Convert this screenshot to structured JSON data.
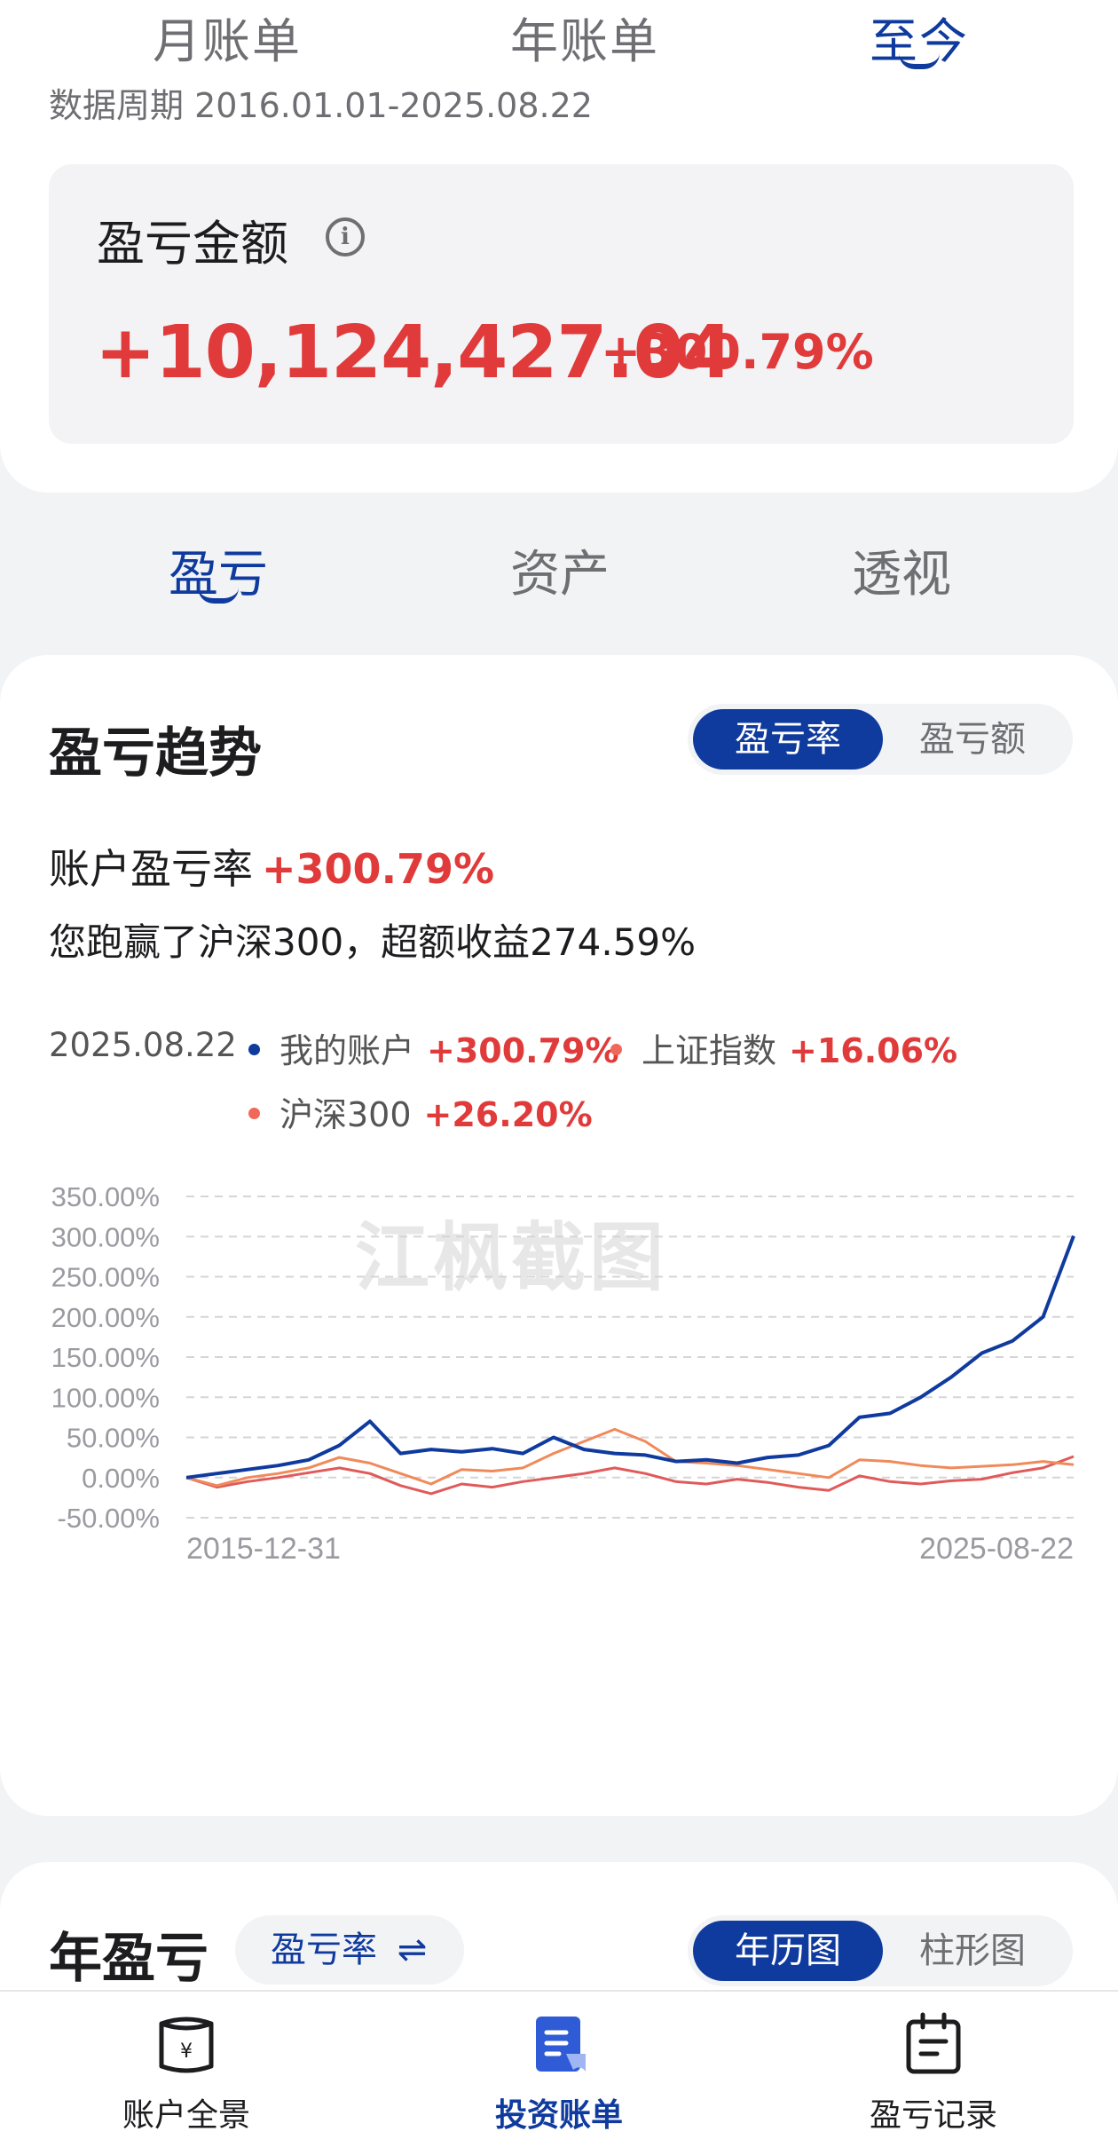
{
  "period_tabs": [
    {
      "label": "月账单"
    },
    {
      "label": "年账单"
    },
    {
      "label": "至今"
    }
  ],
  "date_range": "数据周期 2016.01.01-2025.08.22",
  "pnl": {
    "label": "盈亏金额",
    "info_icon": "info-icon",
    "amount": "+10,124,427.04",
    "percent": "+300.79%"
  },
  "main_tabs": [
    {
      "label": "盈亏"
    },
    {
      "label": "资产"
    },
    {
      "label": "透视"
    }
  ],
  "trend": {
    "title": "盈亏趋势",
    "toggle": [
      "盈亏率",
      "盈亏额"
    ],
    "rate_label": "账户盈亏率",
    "rate_value": "+300.79%",
    "beat_text": "您跑赢了沪深300，超额收益274.59%",
    "legend_date": "2025.08.22",
    "legend": [
      {
        "name": "我的账户",
        "value": "+300.79%",
        "color": "#0f3a9e"
      },
      {
        "name": "上证指数",
        "value": "+16.06%",
        "color": "#f08a5a"
      },
      {
        "name": "沪深300",
        "value": "+26.20%",
        "color": "#e05a5a"
      }
    ],
    "watermark": "江枫截图"
  },
  "chart_data": {
    "type": "line",
    "ylabel": "",
    "xlabel": "",
    "ylim": [
      -50,
      350
    ],
    "yticks": [
      "350.00%",
      "300.00%",
      "250.00%",
      "200.00%",
      "150.00%",
      "100.00%",
      "50.00%",
      "0.00%",
      "-50.00%"
    ],
    "ytick_values": [
      350,
      300,
      250,
      200,
      150,
      100,
      50,
      0,
      -50
    ],
    "xticks": [
      "2015-12-31",
      "2025-08-22"
    ],
    "x": [
      "2015-12-31",
      "2016-06",
      "2017-01",
      "2017-06",
      "2017-10",
      "2018-01",
      "2018-02",
      "2018-06",
      "2018-12",
      "2019-04",
      "2019-08",
      "2020-01",
      "2020-02",
      "2020-07",
      "2021-02",
      "2021-07",
      "2022-04",
      "2022-10",
      "2023-04",
      "2023-10",
      "2024-02",
      "2024-06",
      "2024-09",
      "2024-10",
      "2024-12",
      "2025-02",
      "2025-04",
      "2025-06",
      "2025-07",
      "2025-08-22"
    ],
    "series": [
      {
        "name": "我的账户",
        "color": "#0f3a9e",
        "values": [
          0,
          5,
          10,
          15,
          22,
          40,
          70,
          30,
          35,
          32,
          36,
          30,
          50,
          35,
          30,
          28,
          20,
          22,
          18,
          25,
          28,
          40,
          75,
          80,
          100,
          125,
          155,
          170,
          200,
          300.79
        ]
      },
      {
        "name": "上证指数",
        "color": "#f08a5a",
        "values": [
          0,
          -10,
          0,
          5,
          12,
          25,
          18,
          5,
          -8,
          10,
          8,
          12,
          30,
          45,
          60,
          45,
          20,
          18,
          15,
          10,
          5,
          0,
          22,
          20,
          15,
          12,
          14,
          16,
          20,
          16.06
        ]
      },
      {
        "name": "沪深300",
        "color": "#e05a5a",
        "values": [
          0,
          -12,
          -5,
          0,
          6,
          12,
          5,
          -10,
          -20,
          -8,
          -12,
          -5,
          0,
          5,
          12,
          5,
          -5,
          -8,
          -2,
          -6,
          -12,
          -16,
          2,
          -5,
          -8,
          -4,
          -2,
          6,
          12,
          26.2
        ]
      }
    ]
  },
  "year_section": {
    "title": "年盈亏",
    "chip_label": "盈亏率",
    "chip_icon": "swap-icon",
    "toggle": [
      "年历图",
      "柱形图"
    ]
  },
  "bottom_nav": [
    {
      "label": "账户全景",
      "icon": "wallet-icon"
    },
    {
      "label": "投资账单",
      "icon": "bill-icon"
    },
    {
      "label": "盈亏记录",
      "icon": "calendar-icon"
    }
  ],
  "colors": {
    "accent": "#0f3a9e",
    "gain": "#e03a3a"
  }
}
